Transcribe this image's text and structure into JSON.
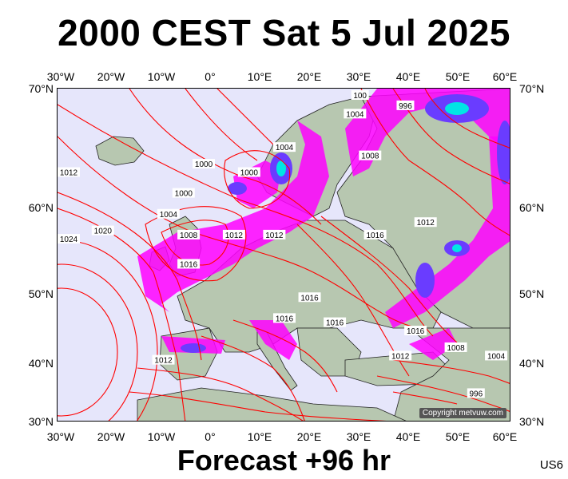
{
  "title": "2000 CEST Sat 5 Jul 2025",
  "footer": "Forecast +96 hr",
  "model_tag": "US6",
  "copyright": "Copyright metvuw.com",
  "lon_labels": [
    "30°W",
    "20°W",
    "10°W",
    "0°",
    "10°E",
    "20°E",
    "30°E",
    "40°E",
    "50°E",
    "60°E"
  ],
  "lat_labels": [
    "70°N",
    "60°N",
    "50°N",
    "40°N",
    "30°N"
  ],
  "extent": {
    "lon_min": -30,
    "lon_max": 60,
    "lat_min": 30,
    "lat_max": 70
  },
  "isobars": [
    {
      "value": "1000",
      "lon": -1,
      "lat": 61
    },
    {
      "value": "1000",
      "lon": 8,
      "lat": 60
    },
    {
      "value": "1000",
      "lon": -5,
      "lat": 57.5
    },
    {
      "value": "1004",
      "lon": 15,
      "lat": 63
    },
    {
      "value": "1004",
      "lon": -8,
      "lat": 55
    },
    {
      "value": "1004",
      "lon": 29,
      "lat": 67
    },
    {
      "value": "1008",
      "lon": -4,
      "lat": 52.5
    },
    {
      "value": "1008",
      "lon": 32,
      "lat": 62
    },
    {
      "value": "1008",
      "lon": 49,
      "lat": 39
    },
    {
      "value": "1012",
      "lon": -28,
      "lat": 60
    },
    {
      "value": "1012",
      "lon": 5,
      "lat": 52.5
    },
    {
      "value": "1012",
      "lon": 13,
      "lat": 52.5
    },
    {
      "value": "1012",
      "lon": 43,
      "lat": 54
    },
    {
      "value": "1012",
      "lon": 38,
      "lat": 38
    },
    {
      "value": "1012",
      "lon": -9,
      "lat": 37.5
    },
    {
      "value": "1016",
      "lon": -4,
      "lat": 49
    },
    {
      "value": "1016",
      "lon": 33,
      "lat": 52.5
    },
    {
      "value": "1016",
      "lon": 20,
      "lat": 45
    },
    {
      "value": "1016",
      "lon": 15,
      "lat": 42.5
    },
    {
      "value": "1016",
      "lon": 41,
      "lat": 41
    },
    {
      "value": "1020",
      "lon": -21,
      "lat": 53
    },
    {
      "value": "1024",
      "lon": -30,
      "lat": 52
    },
    {
      "value": "996",
      "lon": 39,
      "lat": 68
    },
    {
      "value": "996",
      "lon": 53,
      "lat": 33.5
    },
    {
      "value": "1004",
      "lon": 57,
      "lat": 38
    },
    {
      "value": "100",
      "lon": 30,
      "lat": 69.5
    },
    {
      "value": "1016",
      "lon": 25,
      "lat": 42
    }
  ],
  "legend_colors": {
    "isobar": "#ff0000",
    "sea": "#e6e6fb",
    "land": "#b7c7b0",
    "rain_light": "#ff00ff",
    "rain_mid": "#6a3cff",
    "rain_heavy": "#00e5e5"
  }
}
